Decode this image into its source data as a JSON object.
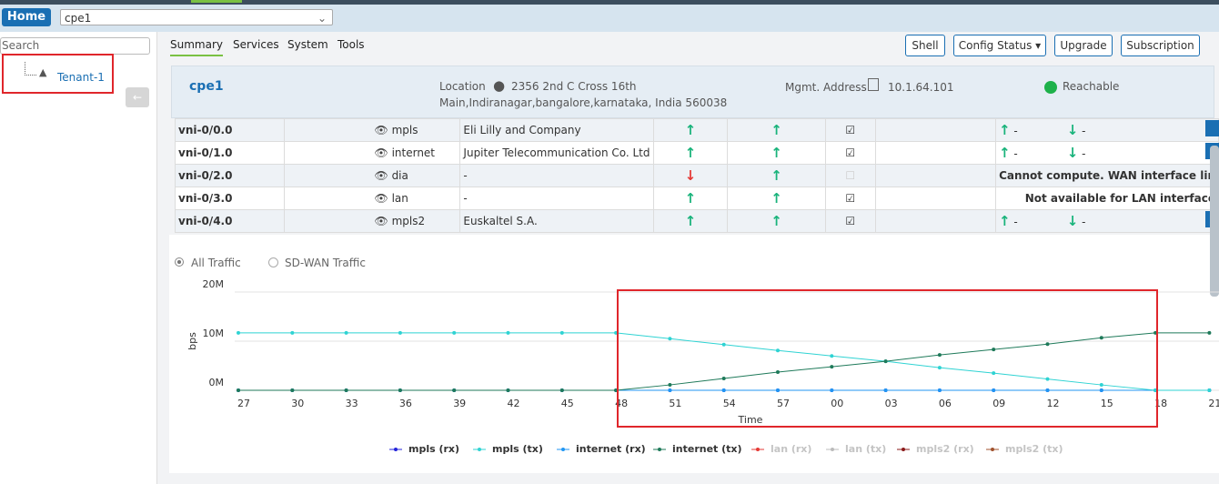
{
  "header": {
    "home": "Home",
    "device": "cpe1"
  },
  "sidebar": {
    "search": "Search",
    "tenant": "Tenant-1"
  },
  "tabs": [
    "Summary",
    "Services",
    "System",
    "Tools"
  ],
  "actions": [
    "Shell",
    "Config Status",
    "Upgrade",
    "Subscription"
  ],
  "device_info": {
    "name": "cpe1",
    "location_label": "Location",
    "location": [
      "2356 2nd C Cross 16th",
      "Main,Indiranagar,bangalore,karnataka, India 560038"
    ],
    "mgmt_label": "Mgmt. Address",
    "mgmt_address": "10.1.64.101",
    "status": "Reachable"
  },
  "table": {
    "rows": [
      [
        "vni-0/0.0",
        "mpls",
        "Eli Lilly and Company",
        "-",
        "-"
      ],
      [
        "vni-0/1.0",
        "internet",
        "Jupiter Telecommunication Co. Ltd",
        "-",
        "-"
      ],
      [
        "vni-0/2.0",
        "dia",
        "-",
        "Cannot compute. WAN interface lin"
      ],
      [
        "vni-0/3.0",
        "lan",
        "-",
        "Not available for LAN interface"
      ],
      [
        "vni-0/4.0",
        "mpls2",
        "Euskaltel S.A.",
        "-",
        "-"
      ]
    ]
  },
  "traffic_filter": [
    "All Traffic",
    "SD-WAN Traffic"
  ],
  "chart_data": {
    "type": "line",
    "ylabel": "bps",
    "xlabel": "Time",
    "categories": [
      "27",
      "30",
      "33",
      "36",
      "39",
      "42",
      "45",
      "48",
      "51",
      "54",
      "57",
      "00",
      "03",
      "06",
      "09",
      "12",
      "15",
      "18",
      "21"
    ],
    "ylim": [
      0,
      20000000
    ],
    "yticks": [
      {
        "value": 0,
        "label": "0M"
      },
      {
        "value": 10000000,
        "label": "10M"
      },
      {
        "value": 20000000,
        "label": "20M"
      }
    ],
    "grid": true,
    "legend": "bottom",
    "series": [
      {
        "name": "mpls (rx)",
        "color": "#2323d9",
        "visible": true,
        "values": [
          0,
          0,
          0,
          0,
          0,
          0,
          0,
          0,
          0,
          0,
          0,
          0,
          0,
          0,
          0,
          0,
          0,
          0,
          0
        ]
      },
      {
        "name": "mpls (tx)",
        "color": "#2fd3d3",
        "visible": true,
        "values": [
          11700000,
          11700000,
          11700000,
          11700000,
          11700000,
          11700000,
          11700000,
          11700000,
          10500000,
          9300000,
          8100000,
          7000000,
          5900000,
          4600000,
          3500000,
          2300000,
          1100000,
          0,
          0
        ]
      },
      {
        "name": "internet (rx)",
        "color": "#2196f3",
        "visible": true,
        "values": [
          0,
          0,
          0,
          0,
          0,
          0,
          0,
          0,
          0,
          0,
          0,
          0,
          0,
          0,
          0,
          0,
          0,
          0,
          0
        ]
      },
      {
        "name": "internet (tx)",
        "color": "#1f7a5a",
        "visible": true,
        "values": [
          0,
          0,
          0,
          0,
          0,
          0,
          0,
          0,
          1100000,
          2400000,
          3700000,
          4800000,
          5900000,
          7200000,
          8300000,
          9400000,
          10700000,
          11700000,
          11700000
        ]
      },
      {
        "name": "lan (rx)",
        "color": "#e53935",
        "visible": false,
        "values": [
          null,
          null,
          null,
          null,
          null,
          null,
          null,
          null,
          null,
          null,
          null,
          null,
          null,
          null,
          null,
          null,
          null,
          null,
          null
        ]
      },
      {
        "name": "lan (tx)",
        "color": "#bbbbbb",
        "visible": false,
        "values": [
          null,
          null,
          null,
          null,
          null,
          null,
          null,
          null,
          null,
          null,
          null,
          null,
          null,
          null,
          null,
          null,
          null,
          null,
          null
        ]
      },
      {
        "name": "mpls2 (rx)",
        "color": "#8b1a1a",
        "visible": false,
        "values": [
          null,
          null,
          null,
          null,
          null,
          null,
          null,
          null,
          null,
          null,
          null,
          null,
          null,
          null,
          null,
          null,
          null,
          null,
          null
        ]
      },
      {
        "name": "mpls2 (tx)",
        "color": "#a0522d",
        "visible": false,
        "values": [
          null,
          null,
          null,
          null,
          null,
          null,
          null,
          null,
          null,
          null,
          null,
          null,
          null,
          null,
          null,
          null,
          null,
          null,
          null
        ]
      }
    ]
  }
}
